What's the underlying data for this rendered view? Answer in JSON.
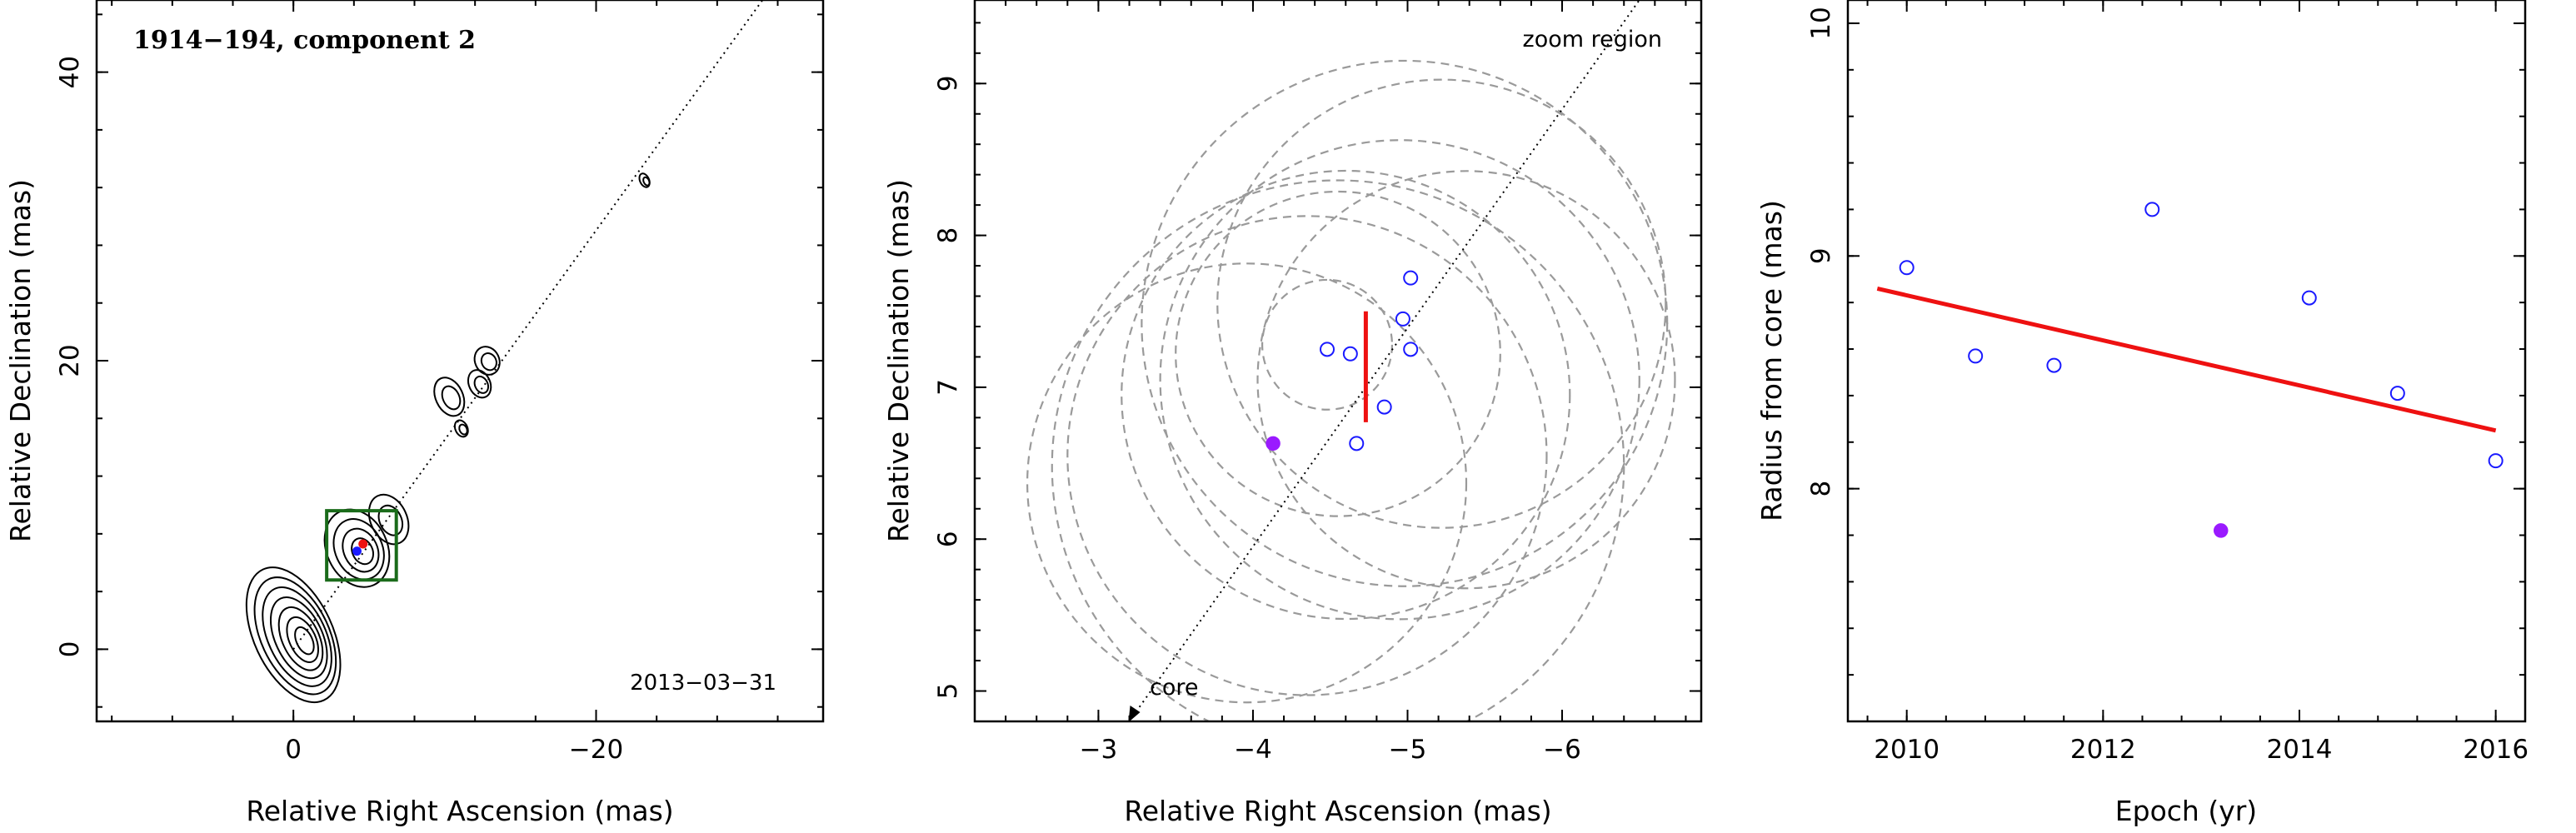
{
  "colors": {
    "open_marker": "#1a1aff",
    "filled_marker": "#9a1aff",
    "fit_line": "#ee1111",
    "zoom_box": "#1a6b1a",
    "circles": "#9a9a9a"
  },
  "chart_data": [
    {
      "type": "contour",
      "title": "1914−194, component 2",
      "date_label": "2013−03−31",
      "xlabel": "Relative Right Ascension (mas)",
      "ylabel": "Relative Declination (mas)",
      "xlim": [
        13,
        -35
      ],
      "ylim": [
        -5,
        45
      ],
      "xticks": [
        0,
        -20
      ],
      "xtick_labels": [
        "0",
        "−20"
      ],
      "yticks": [
        0,
        20,
        40
      ],
      "ytick_labels": [
        "0",
        "20",
        "40"
      ],
      "axis_line": {
        "from": [
          0,
          0
        ],
        "to": [
          -31,
          45
        ],
        "style": "dotted"
      },
      "zoom_box": {
        "x": [
          -2.2,
          -6.8
        ],
        "y": [
          4.8,
          9.6
        ]
      },
      "components": [
        {
          "x": -4.6,
          "y": 7.3,
          "color": "red"
        },
        {
          "x": -4.2,
          "y": 6.8,
          "color": "blue"
        }
      ],
      "contour_blobs": [
        {
          "x": 0,
          "y": 1,
          "rx": 2.6,
          "ry": 5.0
        },
        {
          "x": -4.2,
          "y": 7.0,
          "rx": 2.0,
          "ry": 2.8
        },
        {
          "x": -6.3,
          "y": 9.0,
          "rx": 1.2,
          "ry": 1.8
        },
        {
          "x": -10.3,
          "y": 17.5,
          "rx": 0.9,
          "ry": 1.4
        },
        {
          "x": -11.1,
          "y": 15.3,
          "rx": 0.4,
          "ry": 0.6
        },
        {
          "x": -12.3,
          "y": 18.4,
          "rx": 0.7,
          "ry": 1.0
        },
        {
          "x": -12.8,
          "y": 20.0,
          "rx": 0.8,
          "ry": 1.0
        },
        {
          "x": -23.2,
          "y": 32.5,
          "rx": 0.3,
          "ry": 0.5
        }
      ]
    },
    {
      "type": "scatter",
      "xlabel": "Relative Right Ascension (mas)",
      "ylabel": "Relative Declination (mas)",
      "xlim": [
        -2.2,
        -6.9
      ],
      "ylim": [
        4.8,
        9.55
      ],
      "xticks": [
        -3,
        -4,
        -5,
        -6
      ],
      "xtick_labels": [
        "−3",
        "−4",
        "−5",
        "−6"
      ],
      "yticks": [
        5,
        6,
        7,
        8,
        9
      ],
      "ytick_labels": [
        "5",
        "6",
        "7",
        "8",
        "9"
      ],
      "annotations": {
        "zoom": "zoom region",
        "core": "core"
      },
      "axis_line": {
        "from": [
          -3.2,
          4.8
        ],
        "to": [
          -6.5,
          9.55
        ]
      },
      "circles": [
        {
          "cx": -4.48,
          "cy": 7.28,
          "r": 0.42
        },
        {
          "cx": -4.55,
          "cy": 7.22,
          "r": 1.05
        },
        {
          "cx": -4.95,
          "cy": 7.05,
          "r": 1.55
        },
        {
          "cx": -4.6,
          "cy": 6.95,
          "r": 1.45
        },
        {
          "cx": -4.35,
          "cy": 6.55,
          "r": 1.55
        },
        {
          "cx": -4.98,
          "cy": 7.42,
          "r": 1.7
        },
        {
          "cx": -5.22,
          "cy": 7.55,
          "r": 1.45
        },
        {
          "cx": -5.38,
          "cy": 7.05,
          "r": 1.35
        },
        {
          "cx": -4.55,
          "cy": 6.48,
          "r": 1.85
        },
        {
          "cx": -3.96,
          "cy": 6.37,
          "r": 1.42
        }
      ],
      "open_points": [
        [
          -4.48,
          7.25
        ],
        [
          -4.63,
          7.22
        ],
        [
          -4.67,
          6.63
        ],
        [
          -4.85,
          6.87
        ],
        [
          -4.97,
          7.45
        ],
        [
          -5.02,
          7.72
        ],
        [
          -5.02,
          7.25
        ]
      ],
      "filled_points": [
        [
          -4.13,
          6.63
        ]
      ],
      "error_bar": {
        "x": -4.73,
        "y": [
          6.77,
          7.5
        ]
      }
    },
    {
      "type": "scatter",
      "xlabel": "Epoch (yr)",
      "ylabel": "Radius from core (mas)",
      "xlim": [
        2009.4,
        2016.3
      ],
      "ylim": [
        7.0,
        10.1
      ],
      "xticks": [
        2010,
        2012,
        2014,
        2016
      ],
      "xtick_labels": [
        "2010",
        "2012",
        "2014",
        "2016"
      ],
      "yticks": [
        8,
        9,
        10
      ],
      "ytick_labels": [
        "8",
        "9",
        "10"
      ],
      "open_points": [
        [
          2010.0,
          8.95
        ],
        [
          2010.7,
          8.57
        ],
        [
          2011.5,
          8.53
        ],
        [
          2012.5,
          9.2
        ],
        [
          2014.1,
          8.82
        ],
        [
          2015.0,
          8.41
        ],
        [
          2016.0,
          8.12
        ]
      ],
      "filled_points": [
        [
          2013.2,
          7.82
        ]
      ],
      "fit_line": [
        [
          2009.7,
          8.86
        ],
        [
          2016.0,
          8.25
        ]
      ]
    }
  ]
}
